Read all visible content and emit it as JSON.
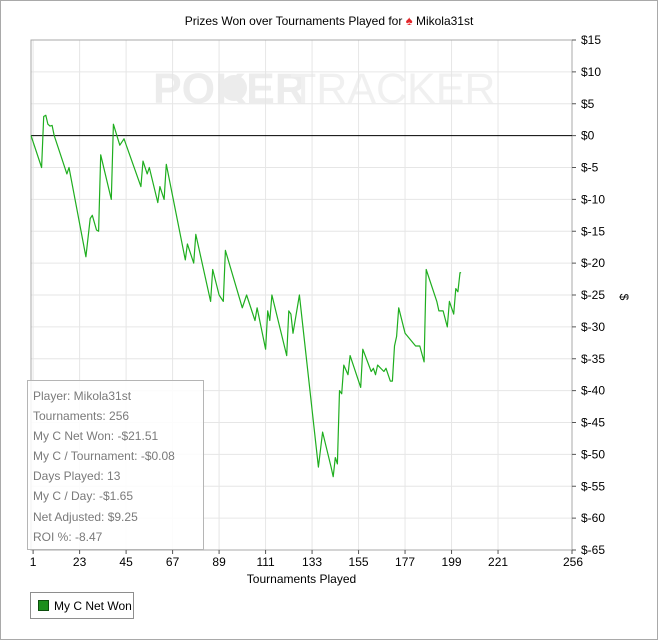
{
  "window": {
    "title_text": "Prizes Won over Tournaments Played for",
    "player_icon": "spade-icon",
    "player_name": "Mikola31st"
  },
  "watermark": {
    "text_bold": "POKER",
    "text_light": "TRACKER",
    "logo_icon": "poker-chip-icon"
  },
  "stats": [
    "Player: Mikola31st",
    "Tournaments: 256",
    "My C Net Won: -$21.51",
    "My C / Tournament: -$0.08",
    "Days Played: 13",
    "My C / Day: -$1.65",
    "Net Adjusted: $9.25",
    "ROI %: -8.47"
  ],
  "legend": {
    "label": "My C Net Won",
    "color": "#1c8e1c"
  },
  "colors": {
    "line": "#1fae1f",
    "zero_line": "#000000",
    "grid": "#e6e6e6",
    "frame": "#a9a9a9"
  },
  "chart_data": {
    "type": "line",
    "title": "Prizes Won over Tournaments Played for Mikola31st",
    "xlabel": "Tournaments Played",
    "ylabel": "$",
    "xlim": [
      0,
      256
    ],
    "ylim": [
      -65,
      15
    ],
    "x_ticks": [
      1,
      23,
      45,
      67,
      89,
      111,
      133,
      155,
      177,
      199,
      221,
      256
    ],
    "y_ticks": [
      15,
      10,
      5,
      0,
      -5,
      -10,
      -15,
      -20,
      -25,
      -30,
      -35,
      -40,
      -45,
      -50,
      -55,
      -60,
      -65
    ],
    "y_tick_labels": [
      "$15",
      "$10",
      "$5",
      "$0",
      "$-5",
      "$-10",
      "$-15",
      "$-20",
      "$-25",
      "$-30",
      "$-35",
      "$-40",
      "$-45",
      "$-50",
      "$-55",
      "$-60",
      "$-65"
    ],
    "grid": true,
    "legend_position": "bottom-left",
    "series": [
      {
        "name": "My C Net Won",
        "points": [
          [
            0,
            0
          ],
          [
            5,
            -5
          ],
          [
            6,
            3
          ],
          [
            7,
            3.2
          ],
          [
            8,
            1.8
          ],
          [
            9,
            1.5
          ],
          [
            10,
            1.6
          ],
          [
            11,
            0
          ],
          [
            17,
            -6
          ],
          [
            18,
            -5
          ],
          [
            26,
            -19
          ],
          [
            28,
            -13
          ],
          [
            29,
            -12.5
          ],
          [
            31,
            -14.8
          ],
          [
            32,
            -15
          ],
          [
            33,
            -3
          ],
          [
            38,
            -10
          ],
          [
            39,
            1.8
          ],
          [
            42,
            -1.5
          ],
          [
            44,
            -0.5
          ],
          [
            52,
            -8
          ],
          [
            53,
            -4
          ],
          [
            55,
            -6
          ],
          [
            56,
            -5
          ],
          [
            60,
            -10.5
          ],
          [
            61,
            -8
          ],
          [
            63,
            -10
          ],
          [
            64,
            -4.5
          ],
          [
            73,
            -19.5
          ],
          [
            74,
            -17
          ],
          [
            77,
            -20
          ],
          [
            78,
            -15.5
          ],
          [
            85,
            -26
          ],
          [
            86,
            -21
          ],
          [
            89,
            -25
          ],
          [
            91,
            -26
          ],
          [
            92,
            -18
          ],
          [
            100,
            -27
          ],
          [
            102,
            -25
          ],
          [
            106,
            -29
          ],
          [
            107,
            -27
          ],
          [
            111,
            -33.5
          ],
          [
            112,
            -27.5
          ],
          [
            113,
            -29
          ],
          [
            114,
            -25
          ],
          [
            121,
            -34.5
          ],
          [
            122,
            -27.5
          ],
          [
            123,
            -28
          ],
          [
            124,
            -31
          ],
          [
            127,
            -25
          ],
          [
            136,
            -52
          ],
          [
            138,
            -46.5
          ],
          [
            142,
            -52
          ],
          [
            143,
            -53.5
          ],
          [
            144,
            -50.5
          ],
          [
            145,
            -51.5
          ],
          [
            146,
            -40
          ],
          [
            147,
            -40.5
          ],
          [
            148,
            -36
          ],
          [
            150,
            -37.5
          ],
          [
            151,
            -34.5
          ],
          [
            156,
            -39.5
          ],
          [
            157,
            -33.5
          ],
          [
            161,
            -37
          ],
          [
            162,
            -36.5
          ],
          [
            163,
            -37.5
          ],
          [
            164,
            -36
          ],
          [
            167,
            -37
          ],
          [
            168,
            -36.5
          ],
          [
            170,
            -38.5
          ],
          [
            171,
            -38.5
          ],
          [
            172,
            -33
          ],
          [
            173,
            -31.5
          ],
          [
            174,
            -27
          ],
          [
            177,
            -31
          ],
          [
            182,
            -33
          ],
          [
            184,
            -33
          ],
          [
            186,
            -35.5
          ],
          [
            187,
            -21
          ],
          [
            192,
            -26
          ],
          [
            193,
            -27.5
          ],
          [
            194,
            -27.5
          ],
          [
            195,
            -27.5
          ],
          [
            197,
            -30
          ],
          [
            198,
            -26
          ],
          [
            200,
            -28
          ],
          [
            201,
            -24
          ],
          [
            202,
            -24.5
          ],
          [
            203,
            -21.5
          ],
          [
            203.5,
            -21.5
          ]
        ]
      }
    ]
  }
}
